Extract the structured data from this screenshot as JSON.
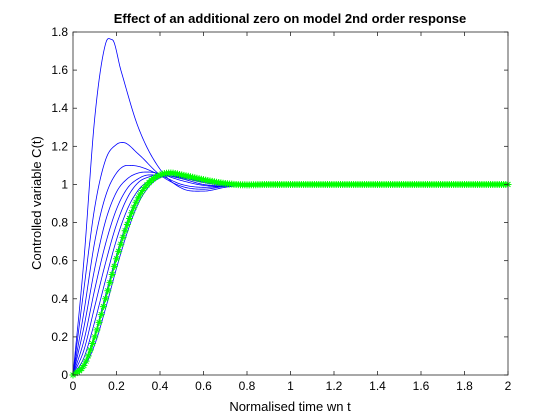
{
  "chart_data": {
    "type": "line",
    "title": "Effect of an additional zero on model 2nd order response",
    "xlabel": "Normalised time wn t",
    "ylabel": "Controlled variable C(t)",
    "xlim": [
      0,
      2
    ],
    "ylim": [
      0,
      1.8
    ],
    "x_ticks": [
      0,
      0.2,
      0.4,
      0.6,
      0.8,
      1,
      1.2,
      1.4,
      1.6,
      1.8,
      2
    ],
    "x_tick_labels": [
      "0",
      "0.2",
      "0.4",
      "0.6",
      "0.8",
      "1",
      "1.2",
      "1.4",
      "1.6",
      "1.8",
      "2"
    ],
    "y_ticks": [
      0,
      0.2,
      0.4,
      0.6,
      0.8,
      1,
      1.2,
      1.4,
      1.6,
      1.8
    ],
    "y_tick_labels": [
      "0",
      "0.2",
      "0.4",
      "0.6",
      "0.8",
      "1",
      "1.2",
      "1.4",
      "1.6",
      "1.8"
    ],
    "grid": false,
    "box": true,
    "series": [
      {
        "color": "#0000ff",
        "marker": "none",
        "points": [
          [
            0,
            0
          ],
          [
            0.05,
            0.6
          ],
          [
            0.1,
            1.35
          ],
          [
            0.15,
            1.74
          ],
          [
            0.18,
            1.76
          ],
          [
            0.22,
            1.6
          ],
          [
            0.3,
            1.3
          ],
          [
            0.4,
            1.08
          ],
          [
            0.5,
            0.98
          ],
          [
            0.6,
            0.965
          ],
          [
            0.7,
            0.985
          ],
          [
            0.8,
            0.997
          ],
          [
            1,
            1.0
          ],
          [
            2,
            1.0
          ]
        ]
      },
      {
        "color": "#0000ff",
        "marker": "none",
        "points": [
          [
            0,
            0
          ],
          [
            0.05,
            0.45
          ],
          [
            0.1,
            0.88
          ],
          [
            0.15,
            1.13
          ],
          [
            0.2,
            1.21
          ],
          [
            0.23,
            1.22
          ],
          [
            0.3,
            1.16
          ],
          [
            0.4,
            1.05
          ],
          [
            0.5,
            0.99
          ],
          [
            0.6,
            0.975
          ],
          [
            0.7,
            0.99
          ],
          [
            0.8,
            0.998
          ],
          [
            1,
            1.0
          ],
          [
            2,
            1.0
          ]
        ]
      },
      {
        "color": "#0000ff",
        "marker": "none",
        "points": [
          [
            0,
            0
          ],
          [
            0.05,
            0.33
          ],
          [
            0.1,
            0.7
          ],
          [
            0.15,
            0.94
          ],
          [
            0.2,
            1.06
          ],
          [
            0.25,
            1.1
          ],
          [
            0.3,
            1.095
          ],
          [
            0.4,
            1.05
          ],
          [
            0.5,
            1.0
          ],
          [
            0.6,
            0.985
          ],
          [
            0.7,
            0.99
          ],
          [
            0.8,
            0.998
          ],
          [
            1,
            1.0
          ],
          [
            2,
            1.0
          ]
        ]
      },
      {
        "color": "#0000ff",
        "marker": "none",
        "points": [
          [
            0,
            0
          ],
          [
            0.05,
            0.25
          ],
          [
            0.1,
            0.56
          ],
          [
            0.15,
            0.81
          ],
          [
            0.2,
            0.96
          ],
          [
            0.25,
            1.03
          ],
          [
            0.3,
            1.06
          ],
          [
            0.35,
            1.065
          ],
          [
            0.4,
            1.055
          ],
          [
            0.5,
            1.02
          ],
          [
            0.6,
            0.995
          ],
          [
            0.7,
            0.99
          ],
          [
            0.8,
            0.997
          ],
          [
            1,
            1.0
          ],
          [
            2,
            1.0
          ]
        ]
      },
      {
        "color": "#0000ff",
        "marker": "none",
        "points": [
          [
            0,
            0
          ],
          [
            0.05,
            0.18
          ],
          [
            0.1,
            0.45
          ],
          [
            0.15,
            0.69
          ],
          [
            0.2,
            0.87
          ],
          [
            0.25,
            0.98
          ],
          [
            0.3,
            1.03
          ],
          [
            0.35,
            1.05
          ],
          [
            0.4,
            1.05
          ],
          [
            0.5,
            1.03
          ],
          [
            0.6,
            1.0
          ],
          [
            0.7,
            0.993
          ],
          [
            0.8,
            0.998
          ],
          [
            1,
            1.0
          ],
          [
            2,
            1.0
          ]
        ]
      },
      {
        "color": "#0000ff",
        "marker": "none",
        "points": [
          [
            0,
            0
          ],
          [
            0.05,
            0.13
          ],
          [
            0.1,
            0.36
          ],
          [
            0.15,
            0.59
          ],
          [
            0.2,
            0.79
          ],
          [
            0.25,
            0.93
          ],
          [
            0.3,
            1.01
          ],
          [
            0.35,
            1.04
          ],
          [
            0.4,
            1.05
          ],
          [
            0.5,
            1.035
          ],
          [
            0.6,
            1.01
          ],
          [
            0.7,
            0.997
          ],
          [
            0.8,
            0.998
          ],
          [
            1,
            1.0
          ],
          [
            2,
            1.0
          ]
        ]
      },
      {
        "color": "#0000ff",
        "marker": "none",
        "points": [
          [
            0,
            0
          ],
          [
            0.05,
            0.09
          ],
          [
            0.1,
            0.28
          ],
          [
            0.15,
            0.5
          ],
          [
            0.2,
            0.71
          ],
          [
            0.25,
            0.87
          ],
          [
            0.3,
            0.97
          ],
          [
            0.35,
            1.02
          ],
          [
            0.4,
            1.045
          ],
          [
            0.45,
            1.045
          ],
          [
            0.5,
            1.035
          ],
          [
            0.6,
            1.015
          ],
          [
            0.7,
            1.0
          ],
          [
            0.8,
            0.998
          ],
          [
            1,
            1.0
          ],
          [
            2,
            1.0
          ]
        ]
      },
      {
        "color": "#0000ff",
        "marker": "none",
        "points": [
          [
            0,
            0
          ],
          [
            0.05,
            0.06
          ],
          [
            0.1,
            0.21
          ],
          [
            0.15,
            0.42
          ],
          [
            0.2,
            0.63
          ],
          [
            0.25,
            0.81
          ],
          [
            0.3,
            0.94
          ],
          [
            0.35,
            1.01
          ],
          [
            0.4,
            1.04
          ],
          [
            0.45,
            1.045
          ],
          [
            0.5,
            1.04
          ],
          [
            0.6,
            1.02
          ],
          [
            0.7,
            1.005
          ],
          [
            0.8,
            1.0
          ],
          [
            1,
            1.0
          ],
          [
            2,
            1.0
          ]
        ]
      },
      {
        "color": "#0000ff",
        "marker": "none",
        "points": [
          [
            0,
            0
          ],
          [
            0.05,
            0.04
          ],
          [
            0.1,
            0.16
          ],
          [
            0.15,
            0.35
          ],
          [
            0.2,
            0.56
          ],
          [
            0.25,
            0.75
          ],
          [
            0.3,
            0.9
          ],
          [
            0.35,
            0.99
          ],
          [
            0.4,
            1.035
          ],
          [
            0.45,
            1.045
          ],
          [
            0.5,
            1.04
          ],
          [
            0.6,
            1.02
          ],
          [
            0.7,
            1.005
          ],
          [
            0.8,
            1.0
          ],
          [
            1,
            1.0
          ],
          [
            2,
            1.0
          ]
        ]
      },
      {
        "color": "#00ff00",
        "marker": "*",
        "points": [
          [
            0,
            0
          ],
          [
            0.05,
            0.05
          ],
          [
            0.1,
            0.2
          ],
          [
            0.15,
            0.4
          ],
          [
            0.2,
            0.61
          ],
          [
            0.25,
            0.79
          ],
          [
            0.3,
            0.93
          ],
          [
            0.35,
            1.01
          ],
          [
            0.4,
            1.05
          ],
          [
            0.45,
            1.06
          ],
          [
            0.5,
            1.05
          ],
          [
            0.6,
            1.025
          ],
          [
            0.7,
            1.005
          ],
          [
            0.8,
            0.998
          ],
          [
            0.9,
            1.0
          ],
          [
            1,
            1.0
          ],
          [
            2,
            1.0
          ]
        ]
      }
    ]
  }
}
